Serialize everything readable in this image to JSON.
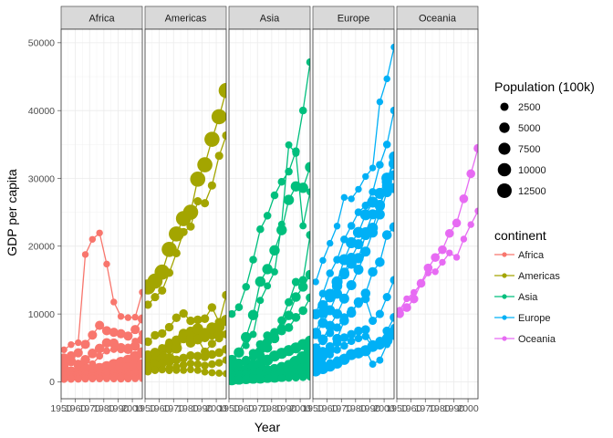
{
  "chart_data": {
    "type": "scatter",
    "facets": [
      "Africa",
      "Americas",
      "Asia",
      "Europe",
      "Oceania"
    ],
    "xlabel": "Year",
    "ylabel": "GDP per capita",
    "x_ticks": [
      1950,
      1960,
      1970,
      1980,
      1990,
      2000
    ],
    "x_tick_labels": [
      "1950",
      "1960",
      "1970",
      "1980",
      "1990",
      "2000"
    ],
    "xlim": [
      1950,
      2007
    ],
    "y_ticks": [
      0,
      10000,
      20000,
      30000,
      40000,
      50000
    ],
    "y_tick_labels": [
      "0",
      "10000",
      "20000",
      "30000",
      "40000",
      "50000"
    ],
    "ylim": [
      -2500,
      52000
    ],
    "grid": true,
    "size_legend": {
      "title": "Population (100k)",
      "items": [
        {
          "label": "2500",
          "value": 2500
        },
        {
          "label": "5000",
          "value": 5000
        },
        {
          "label": "7500",
          "value": 7500
        },
        {
          "label": "10000",
          "value": 10000
        },
        {
          "label": "12500",
          "value": 12500
        }
      ]
    },
    "color_legend": {
      "title": "continent",
      "items": [
        {
          "label": "Africa",
          "color": "#F8766D"
        },
        {
          "label": "Americas",
          "color": "#A3A500"
        },
        {
          "label": "Asia",
          "color": "#00BF7D"
        },
        {
          "label": "Europe",
          "color": "#00B0F6"
        },
        {
          "label": "Oceania",
          "color": "#E76BF3"
        }
      ]
    },
    "years": [
      1952,
      1957,
      1962,
      1967,
      1972,
      1977,
      1982,
      1987,
      1992,
      1997,
      2002,
      2007
    ],
    "series": {
      "Africa": [
        {
          "values": [
            4725,
            5487,
            5769,
            18773,
            21011,
            21951,
            17364,
            11770,
            9641,
            9467,
            9534,
            13206
          ],
          "size": 12
        },
        {
          "values": [
            2449,
            3014,
            2551,
            3247,
            4183,
            4910,
            5745,
            5681,
            5023,
            4797,
            5288,
            6223
          ],
          "size": 40
        },
        {
          "values": [
            3520,
            3828,
            4269,
            5523,
            6898,
            8329,
            7540,
            7301,
            7102,
            6750,
            7711,
            9270
          ],
          "size": 35
        },
        {
          "values": [
            1419,
            1590,
            1760,
            2320,
            2640,
            3790,
            4550,
            4780,
            4720,
            5120,
            5970,
            7092
          ],
          "size": 15
        },
        {
          "values": [
            1400,
            1460,
            1590,
            1700,
            1760,
            1900,
            2240,
            2550,
            2880,
            3180,
            3730,
            4280
          ],
          "size": 60
        },
        {
          "values": [
            1148,
            1240,
            1358,
            1593,
            1772,
            1883,
            2008,
            1895,
            1972,
            1980,
            2280,
            2447
          ],
          "size": 80
        },
        {
          "values": [
            1000,
            1050,
            1120,
            1200,
            1250,
            1320,
            1400,
            1380,
            1350,
            1420,
            1500,
            1650
          ],
          "size": 25
        },
        {
          "values": [
            800,
            850,
            900,
            950,
            1000,
            1050,
            1100,
            1050,
            1000,
            1050,
            1150,
            1250
          ],
          "size": 35
        },
        {
          "values": [
            550,
            600,
            640,
            700,
            740,
            760,
            780,
            740,
            700,
            720,
            780,
            850
          ],
          "size": 30
        },
        {
          "values": [
            450,
            480,
            500,
            520,
            540,
            560,
            580,
            560,
            540,
            560,
            600,
            640
          ],
          "size": 20
        },
        {
          "values": [
            360,
            380,
            400,
            420,
            440,
            450,
            460,
            440,
            420,
            430,
            460,
            500
          ],
          "size": 15
        }
      ],
      "Americas": [
        {
          "values": [
            13990,
            14847,
            16173,
            19530,
            21806,
            24073,
            25009,
            29884,
            32003,
            35767,
            39097,
            42952
          ],
          "size": 140
        },
        {
          "values": [
            11367,
            12490,
            13462,
            16077,
            18971,
            22091,
            22899,
            26627,
            26343,
            28955,
            33329,
            36319
          ],
          "size": 25
        },
        {
          "values": [
            5911,
            6857,
            7133,
            8053,
            9443,
            10079,
            8998,
            9140,
            9308,
            10967,
            8798,
            12779
          ],
          "size": 28
        },
        {
          "values": [
            3940,
            4315,
            4520,
            5327,
            6124,
            7124,
            7429,
            7409,
            7245,
            6930,
            7070,
            8948
          ],
          "size": 40
        },
        {
          "values": [
            3048,
            3421,
            3954,
            4862,
            5659,
            6528,
            5745,
            6218,
            6542,
            7123,
            6848,
            9066
          ],
          "size": 40
        },
        {
          "values": [
            2108,
            2487,
            3337,
            3430,
            4986,
            6660,
            7031,
            7807,
            6950,
            7958,
            8131,
            9065
          ],
          "size": 60
        },
        {
          "values": [
            3759,
            4245,
            4957,
            5788,
            5938,
            6281,
            6435,
            6360,
            4447,
            5613,
            6426,
            7007
          ],
          "size": 25
        },
        {
          "values": [
            2180,
            2540,
            2640,
            2880,
            3220,
            3500,
            3860,
            3780,
            3700,
            4030,
            4300,
            4790
          ],
          "size": 30
        },
        {
          "values": [
            1500,
            1700,
            1800,
            2000,
            2200,
            2500,
            2700,
            2600,
            2400,
            2600,
            2800,
            3200
          ],
          "size": 20
        },
        {
          "values": [
            1840,
            1726,
            1797,
            1655,
            1690,
            1700,
            1800,
            1690,
            1456,
            1342,
            1270,
            1202
          ],
          "size": 15
        }
      ],
      "Asia": [
        {
          "values": [
            10000,
            11000,
            14000,
            18000,
            22500,
            24500,
            27500,
            29500,
            31000,
            34000,
            40000,
            47143
          ],
          "size": 20
        },
        {
          "values": [
            3054,
            4444,
            5338,
            6998,
            12004,
            14140,
            16216,
            23236,
            34932,
            33704,
            23000,
            28000
          ],
          "size": 15
        },
        {
          "values": [
            3217,
            4318,
            6576,
            9848,
            14779,
            16610,
            19384,
            22375,
            26824,
            28817,
            28605,
            31656
          ],
          "size": 50
        },
        {
          "values": [
            1831,
            2315,
            2843,
            3675,
            4644,
            5800,
            6854,
            9064,
            11742,
            14722,
            15000,
            21654
          ],
          "size": 25
        },
        {
          "values": [
            1400,
            1600,
            1900,
            2600,
            3800,
            5000,
            6400,
            7800,
            9800,
            12500,
            14000,
            15800
          ],
          "size": 40
        },
        {
          "values": [
            2400,
            2800,
            3200,
            4200,
            5500,
            6800,
            7300,
            7500,
            8000,
            9500,
            10500,
            12400
          ],
          "size": 30
        },
        {
          "values": [
            1000,
            1300,
            1600,
            2100,
            2500,
            3200,
            3800,
            4200,
            4600,
            5000,
            5500,
            6000
          ],
          "size": 60
        },
        {
          "values": [
            900,
            1000,
            1100,
            1300,
            1500,
            1700,
            1900,
            2200,
            2500,
            2800,
            3100,
            3500
          ],
          "size": 45
        },
        {
          "values": [
            500,
            600,
            700,
            750,
            800,
            900,
            1100,
            1500,
            2000,
            2800,
            3500,
            4959
          ],
          "size": 110
        },
        {
          "values": [
            546,
            590,
            658,
            700,
            724,
            813,
            855,
            976,
            1164,
            1458,
            1746,
            2452
          ],
          "size": 100
        },
        {
          "values": [
            600,
            650,
            700,
            720,
            800,
            850,
            900,
            950,
            1000,
            1100,
            1200,
            1300
          ],
          "size": 25
        },
        {
          "values": [
            350,
            400,
            450,
            480,
            500,
            520,
            540,
            560,
            580,
            620,
            680,
            750
          ],
          "size": 20
        }
      ],
      "Europe": [
        {
          "values": [
            14734,
            17909,
            20431,
            22966,
            27195,
            26982,
            28397,
            30281,
            31541,
            41283,
            44684,
            49357
          ],
          "size": 12
        },
        {
          "values": [
            10000,
            13000,
            16000,
            18000,
            21000,
            23000,
            25000,
            26000,
            28000,
            32000,
            35000,
            40000
          ],
          "size": 20
        },
        {
          "values": [
            9979,
            11283,
            12477,
            14142,
            15895,
            17428,
            18232,
            21664,
            22705,
            26075,
            29479,
            33203
          ],
          "size": 50
        },
        {
          "values": [
            7144,
            10188,
            12903,
            14745,
            18016,
            20513,
            22032,
            24639,
            26505,
            27788,
            30036,
            32170
          ],
          "size": 60
        },
        {
          "values": [
            7030,
            8662,
            10560,
            12999,
            16107,
            18292,
            20294,
            22066,
            24704,
            25889,
            28926,
            30470
          ],
          "size": 45
        },
        {
          "values": [
            4932,
            6249,
            8244,
            10022,
            12269,
            14256,
            16537,
            19208,
            22013,
            24675,
            27968,
            28569
          ],
          "size": 45
        },
        {
          "values": [
            3068,
            3775,
            4727,
            6361,
            9022,
            10172,
            11754,
            13039,
            16207,
            17641,
            21646,
            22833
          ],
          "size": 40
        },
        {
          "values": [
            5000,
            6000,
            7200,
            8000,
            9500,
            10500,
            11500,
            12200,
            9000,
            10000,
            12500,
            15000
          ],
          "size": 25
        },
        {
          "values": [
            4000,
            4500,
            5200,
            5800,
            6500,
            7000,
            7500,
            7700,
            5500,
            6000,
            7500,
            9500
          ],
          "size": 30
        },
        {
          "values": [
            3000,
            3500,
            4000,
            4700,
            5300,
            6000,
            6400,
            6700,
            5000,
            5300,
            6500,
            7800
          ],
          "size": 20
        },
        {
          "values": [
            2444,
            2679,
            2836,
            3228,
            3610,
            4011,
            4500,
            4690,
            2600,
            3193,
            5500,
            8000
          ],
          "size": 15
        },
        {
          "values": [
            1601,
            1942,
            2313,
            2760,
            3313,
            4019,
            4260,
            4588,
            5220,
            5600,
            6100,
            7000
          ],
          "size": 60
        }
      ],
      "Oceania": [
        {
          "values": [
            10040,
            10950,
            12217,
            14526,
            16789,
            18334,
            19477,
            21889,
            23425,
            26998,
            30688,
            34435
          ],
          "size": 30
        },
        {
          "values": [
            10557,
            12247,
            13176,
            14464,
            16046,
            16234,
            17632,
            19007,
            18363,
            21050,
            23190,
            25185
          ],
          "size": 12
        }
      ]
    }
  }
}
